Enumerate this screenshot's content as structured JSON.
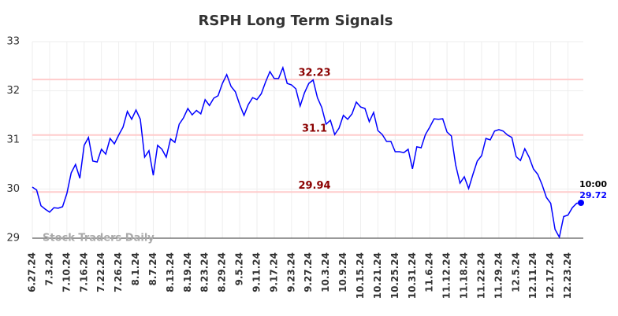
{
  "chart_data": {
    "type": "line",
    "title": "RSPH Long Term Signals",
    "watermark": "Stock Traders Daily",
    "categories": [
      "6.27.24",
      null,
      null,
      null,
      "7.3.24",
      null,
      null,
      null,
      "7.10.24",
      null,
      null,
      null,
      "7.16.24",
      null,
      null,
      null,
      "7.22.24",
      null,
      null,
      null,
      "7.26.24",
      null,
      null,
      null,
      "8.1.24",
      null,
      null,
      null,
      "8.7.24",
      null,
      null,
      null,
      "8.13.24",
      null,
      null,
      null,
      "8.19.24",
      null,
      null,
      null,
      "8.23.24",
      null,
      null,
      null,
      "8.29.24",
      null,
      null,
      null,
      "9.5.24",
      null,
      null,
      null,
      "9.11.24",
      null,
      null,
      null,
      "9.17.24",
      null,
      null,
      null,
      "9.23.24",
      null,
      null,
      null,
      "9.27.24",
      null,
      null,
      null,
      "10.3.24",
      null,
      null,
      null,
      "10.9.24",
      null,
      null,
      null,
      "10.15.24",
      null,
      null,
      null,
      "10.21.24",
      null,
      null,
      null,
      "10.25.24",
      null,
      null,
      null,
      "10.31.24",
      null,
      null,
      null,
      "11.6.24",
      null,
      null,
      null,
      "11.12.24",
      null,
      null,
      null,
      "11.18.24",
      null,
      null,
      null,
      "11.22.24",
      null,
      null,
      null,
      "11.29.24",
      null,
      null,
      null,
      "12.5.24",
      null,
      null,
      null,
      "12.11.24",
      null,
      null,
      null,
      "12.17.24",
      null,
      null,
      null,
      "12.23.24",
      null,
      null,
      null
    ],
    "values": [
      30.04,
      29.98,
      29.66,
      29.59,
      29.53,
      29.62,
      29.61,
      29.64,
      29.91,
      30.33,
      30.5,
      30.22,
      30.89,
      31.05,
      30.57,
      30.55,
      30.81,
      30.71,
      31.03,
      30.92,
      31.1,
      31.26,
      31.58,
      31.42,
      31.61,
      31.42,
      30.65,
      30.78,
      30.28,
      30.89,
      30.81,
      30.65,
      31.02,
      30.95,
      31.32,
      31.45,
      31.64,
      31.51,
      31.6,
      31.53,
      31.82,
      31.7,
      31.85,
      31.9,
      32.15,
      32.33,
      32.09,
      31.98,
      31.72,
      31.5,
      31.72,
      31.86,
      31.82,
      31.94,
      32.18,
      32.39,
      32.25,
      32.25,
      32.47,
      32.15,
      32.12,
      32.04,
      31.69,
      31.96,
      32.15,
      32.22,
      31.86,
      31.66,
      31.32,
      31.4,
      31.11,
      31.24,
      31.5,
      31.42,
      31.53,
      31.77,
      31.67,
      31.64,
      31.37,
      31.56,
      31.19,
      31.11,
      30.97,
      30.97,
      30.76,
      30.76,
      30.74,
      30.81,
      30.41,
      30.86,
      30.84,
      31.11,
      31.26,
      31.43,
      31.42,
      31.43,
      31.16,
      31.08,
      30.49,
      30.12,
      30.25,
      30.01,
      30.3,
      30.57,
      30.68,
      31.03,
      31.0,
      31.18,
      31.21,
      31.18,
      31.1,
      31.05,
      30.66,
      30.58,
      30.82,
      30.65,
      30.41,
      30.3,
      30.09,
      29.83,
      29.71,
      29.18,
      29.02,
      29.44,
      29.47,
      29.62,
      29.71,
      29.72
    ],
    "color": "#0000ff",
    "last_time": "10:00",
    "hlines": [
      32.23,
      31.1,
      29.94
    ],
    "hline_color": "#ffcccc",
    "hline_label_color": "#8b0000",
    "ylim": [
      29,
      33
    ],
    "yticks": [
      29,
      30,
      31,
      32,
      33
    ],
    "grid": true
  }
}
